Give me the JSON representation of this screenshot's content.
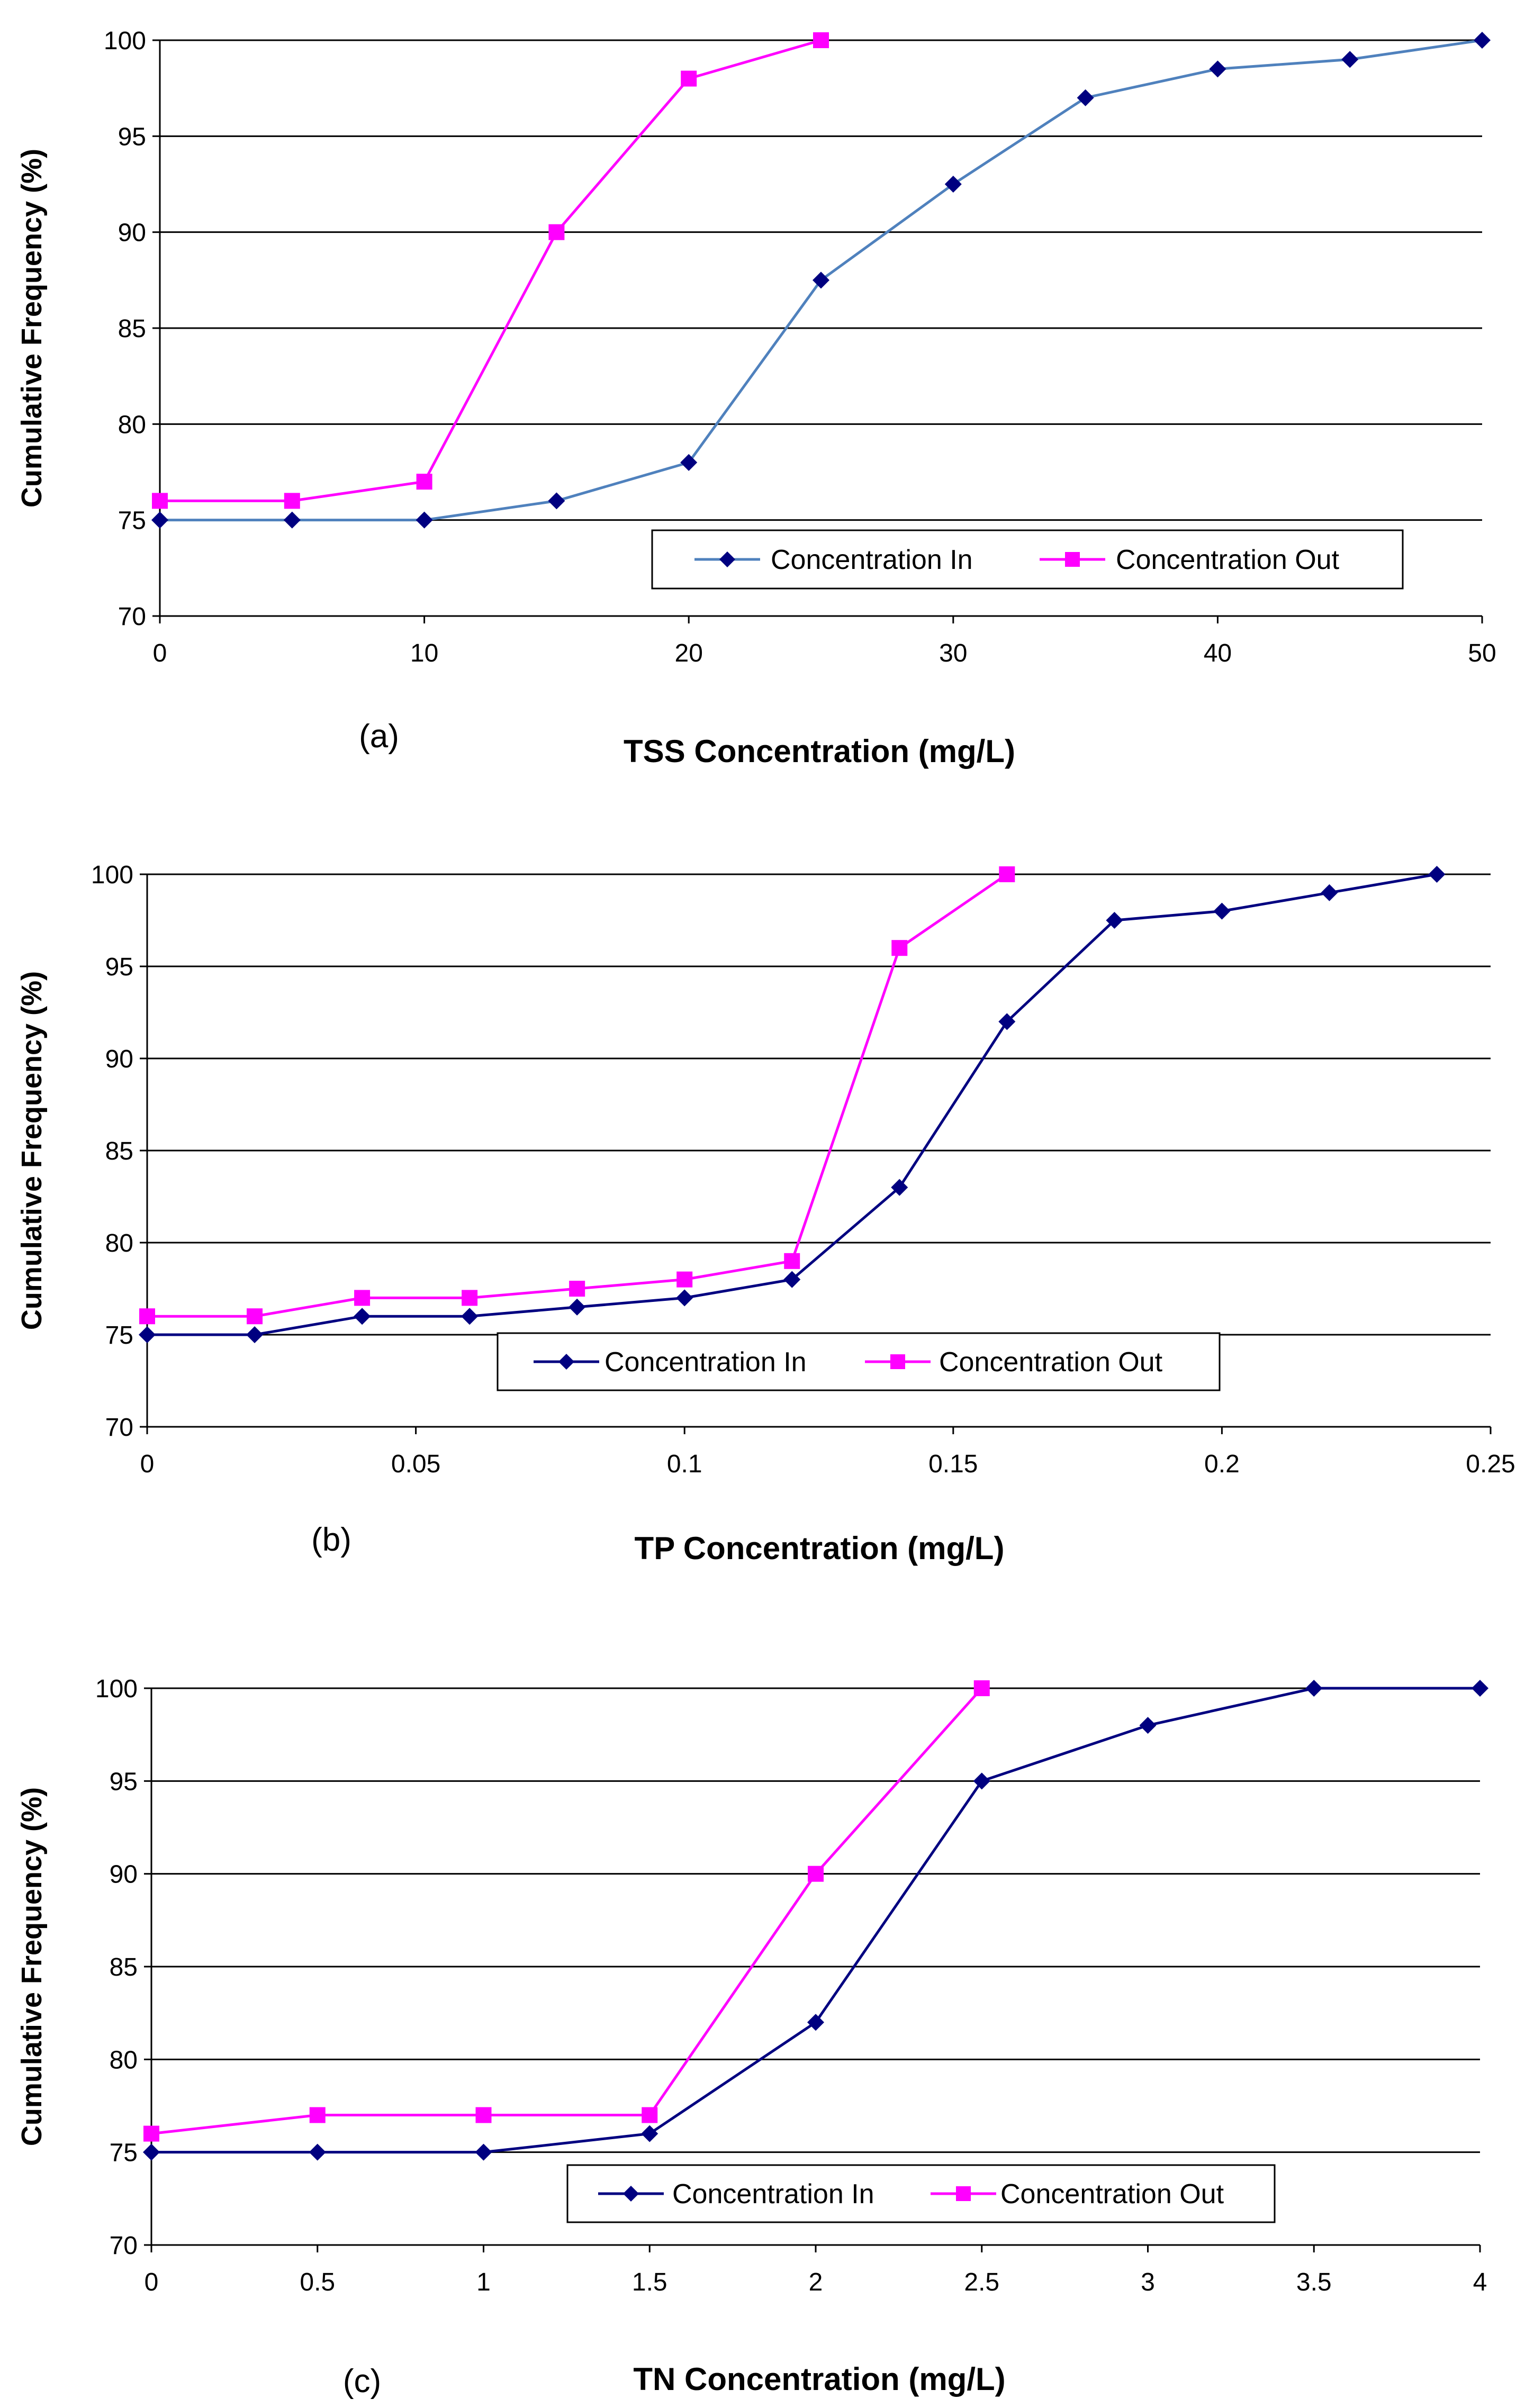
{
  "chart_data": [
    {
      "type": "line",
      "panel_label": "(a)",
      "xlabel": "TSS Concentration (mg/L)",
      "ylabel": "Cumulative Frequency (%)",
      "xlim": [
        0,
        50
      ],
      "ylim": [
        70,
        100
      ],
      "xticks": [
        0,
        10,
        20,
        30,
        40,
        50
      ],
      "xtick_labels": [
        "0",
        "10",
        "20",
        "30",
        "40",
        "50"
      ],
      "yticks": [
        70,
        75,
        80,
        85,
        90,
        95,
        100
      ],
      "ytick_labels": [
        "70",
        "75",
        "80",
        "85",
        "90",
        "95",
        "100"
      ],
      "grid": "horizontal",
      "legend_position": "bottom-right",
      "series": [
        {
          "name": "Concentration In",
          "color": "#4F81BD",
          "marker": "diamond",
          "marker_color": "#000080",
          "x": [
            0,
            5,
            10,
            15,
            20,
            25,
            30,
            35,
            40,
            45,
            50
          ],
          "values": [
            75,
            75,
            75,
            76,
            78,
            87.5,
            92.5,
            97,
            98.5,
            99,
            100
          ]
        },
        {
          "name": "Concentration Out",
          "color": "#FF00FF",
          "marker": "square",
          "marker_color": "#FF00FF",
          "x": [
            0,
            5,
            10,
            15,
            20,
            25
          ],
          "values": [
            76,
            76,
            77,
            90,
            98,
            100
          ]
        }
      ]
    },
    {
      "type": "line",
      "panel_label": "(b)",
      "xlabel": "TP Concentration (mg/L)",
      "ylabel": "Cumulative Frequency (%)",
      "xlim": [
        0,
        0.25
      ],
      "ylim": [
        70,
        100
      ],
      "xticks": [
        0,
        0.05,
        0.1,
        0.15,
        0.2,
        0.25
      ],
      "xtick_labels": [
        "0",
        "0.05",
        "0.1",
        "0.15",
        "0.2",
        "0.25"
      ],
      "yticks": [
        70,
        75,
        80,
        85,
        90,
        95,
        100
      ],
      "ytick_labels": [
        "70",
        "75",
        "80",
        "85",
        "90",
        "95",
        "100"
      ],
      "grid": "horizontal",
      "legend_position": "bottom-center",
      "series": [
        {
          "name": "Concentration In",
          "color": "#000080",
          "marker": "diamond",
          "marker_color": "#000080",
          "x": [
            0,
            0.02,
            0.04,
            0.06,
            0.08,
            0.1,
            0.12,
            0.14,
            0.16,
            0.18,
            0.2,
            0.22,
            0.24
          ],
          "values": [
            75,
            75,
            76,
            76,
            76.5,
            77,
            78,
            83,
            92,
            97.5,
            98,
            99,
            100
          ]
        },
        {
          "name": "Concentration Out",
          "color": "#FF00FF",
          "marker": "square",
          "marker_color": "#FF00FF",
          "x": [
            0,
            0.02,
            0.04,
            0.06,
            0.08,
            0.1,
            0.12,
            0.14,
            0.16
          ],
          "values": [
            76,
            76,
            77,
            77,
            77.5,
            78,
            79,
            96,
            100
          ]
        }
      ]
    },
    {
      "type": "line",
      "panel_label": "(c)",
      "xlabel": "TN Concentration (mg/L)",
      "ylabel": "Cumulative Frequency (%)",
      "xlim": [
        0,
        4
      ],
      "ylim": [
        70,
        100
      ],
      "xticks": [
        0,
        0.5,
        1,
        1.5,
        2,
        2.5,
        3,
        3.5,
        4
      ],
      "xtick_labels": [
        "0",
        "0.5",
        "1",
        "1.5",
        "2",
        "2.5",
        "3",
        "3.5",
        "4"
      ],
      "yticks": [
        70,
        75,
        80,
        85,
        90,
        95,
        100
      ],
      "ytick_labels": [
        "70",
        "75",
        "80",
        "85",
        "90",
        "95",
        "100"
      ],
      "grid": "horizontal",
      "legend_position": "bottom-right",
      "series": [
        {
          "name": "Concentration In",
          "color": "#000080",
          "marker": "diamond",
          "marker_color": "#000080",
          "x": [
            0,
            0.5,
            1,
            1.5,
            2,
            2.5,
            3,
            3.5,
            4
          ],
          "values": [
            75,
            75,
            75,
            76,
            82,
            95,
            98,
            100,
            100
          ]
        },
        {
          "name": "Concentration Out",
          "color": "#FF00FF",
          "marker": "square",
          "marker_color": "#FF00FF",
          "x": [
            0,
            0.5,
            1,
            1.5,
            2,
            2.5
          ],
          "values": [
            76,
            77,
            77,
            77,
            90,
            100
          ]
        }
      ]
    }
  ]
}
